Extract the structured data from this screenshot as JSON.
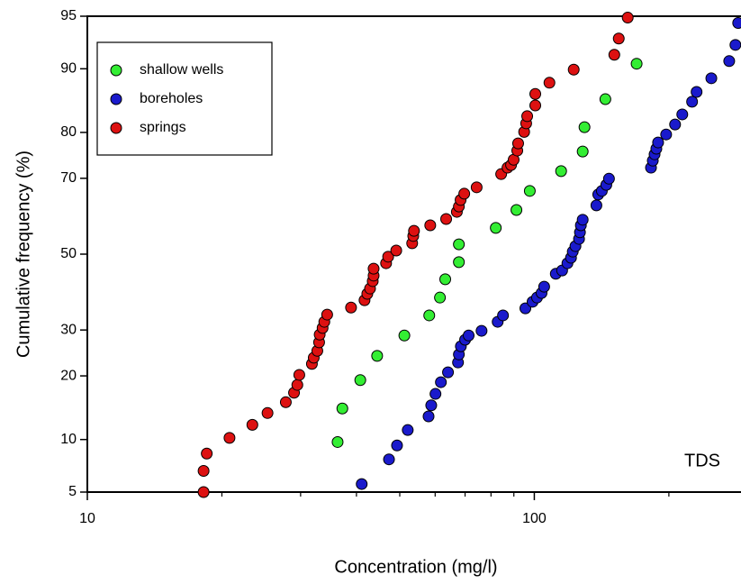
{
  "chart_data": {
    "type": "scatter",
    "xlabel": "Concentration (mg/l)",
    "ylabel": "Cumulative frequency (%)",
    "annotation": "TDS",
    "xscale": "log",
    "yscale": "probability",
    "xlim": [
      10,
      290
    ],
    "ylim": [
      5,
      95
    ],
    "xticks": [
      10,
      100
    ],
    "xminor_ticks": [
      20,
      30,
      40,
      50,
      60,
      70,
      80,
      90,
      200
    ],
    "yticks": [
      5,
      10,
      20,
      30,
      50,
      70,
      80,
      90,
      95
    ],
    "legend": "upper left",
    "series": [
      {
        "name": "shallow wells",
        "color": "#33ee33",
        "x": [
          36.3,
          37.2,
          40.8,
          44.5,
          51.2,
          58.2,
          61.5,
          63.2,
          67.8,
          67.8,
          82.0,
          91.2,
          97.7,
          114.8,
          128.3,
          129.5,
          144.2,
          169.4
        ],
        "values": [
          9.7,
          14.3,
          19.2,
          24.1,
          28.7,
          33.6,
          38.2,
          43.1,
          47.8,
          52.7,
          57.2,
          62.0,
          66.9,
          71.7,
          76.1,
          81.0,
          85.8,
          90.6
        ]
      },
      {
        "name": "boreholes",
        "color": "#1a1acc",
        "x": [
          41.1,
          47.3,
          49.3,
          52.1,
          58.0,
          58.8,
          60.1,
          61.8,
          64.1,
          67.5,
          67.8,
          68.5,
          70.0,
          71.3,
          76.2,
          82.8,
          85.1,
          95.5,
          99.1,
          101.4,
          103.8,
          105.2,
          111.7,
          115.4,
          118.6,
          120.8,
          121.9,
          123.6,
          125.9,
          126.5,
          127.1,
          128.3,
          137.7,
          139.0,
          141.6,
          144.9,
          146.9,
          182.4,
          184.1,
          185.8,
          187.5,
          189.2,
          197.2,
          206.5,
          214.3,
          225.4,
          230.7,
          248.9,
          272.9,
          281.8,
          285.8
        ],
        "values": [
          5.6,
          7.8,
          9.3,
          11.2,
          13.1,
          14.8,
          16.7,
          18.8,
          20.7,
          22.7,
          24.4,
          26.2,
          27.7,
          28.7,
          29.8,
          32.0,
          33.6,
          35.4,
          37.1,
          38.2,
          39.4,
          41.1,
          44.6,
          45.5,
          47.5,
          49.0,
          50.7,
          52.2,
          54.2,
          56.0,
          57.9,
          59.4,
          63.2,
          66.0,
          66.9,
          68.4,
          69.9,
          72.5,
          74.1,
          75.5,
          76.7,
          78.0,
          79.6,
          81.5,
          83.3,
          85.4,
          86.9,
          88.8,
          90.9,
          92.6,
          94.5
        ]
      },
      {
        "name": "springs",
        "color": "#dd1111",
        "x": [
          18.2,
          18.2,
          18.5,
          20.8,
          23.4,
          25.3,
          27.8,
          29.0,
          29.5,
          29.8,
          31.8,
          32.1,
          32.7,
          33.0,
          33.1,
          33.6,
          33.9,
          34.4,
          38.9,
          41.7,
          42.3,
          42.9,
          43.5,
          43.7,
          43.7,
          46.6,
          47.1,
          49.1,
          53.3,
          53.6,
          53.8,
          58.5,
          63.5,
          67.1,
          67.8,
          68.4,
          69.7,
          74.3,
          84.3,
          87.1,
          88.7,
          89.9,
          91.6,
          92.0,
          94.9,
          95.9,
          96.4,
          100.5,
          100.5,
          108.1,
          122.5,
          151.0,
          154.5,
          161.8
        ],
        "values": [
          5.0,
          6.7,
          8.4,
          10.2,
          11.9,
          13.6,
          15.3,
          16.9,
          18.3,
          20.2,
          22.4,
          23.7,
          25.2,
          27.1,
          28.9,
          30.5,
          32.0,
          33.8,
          35.6,
          37.5,
          39.2,
          40.6,
          42.6,
          44.1,
          46.0,
          47.5,
          49.3,
          51.0,
          53.0,
          55.0,
          56.4,
          57.9,
          59.6,
          61.5,
          62.9,
          64.6,
          66.2,
          67.8,
          71.0,
          72.5,
          73.1,
          74.3,
          76.3,
          77.8,
          80.1,
          81.7,
          83.0,
          84.8,
          86.6,
          88.2,
          89.9,
          91.6,
          93.2,
          94.9
        ]
      }
    ]
  }
}
